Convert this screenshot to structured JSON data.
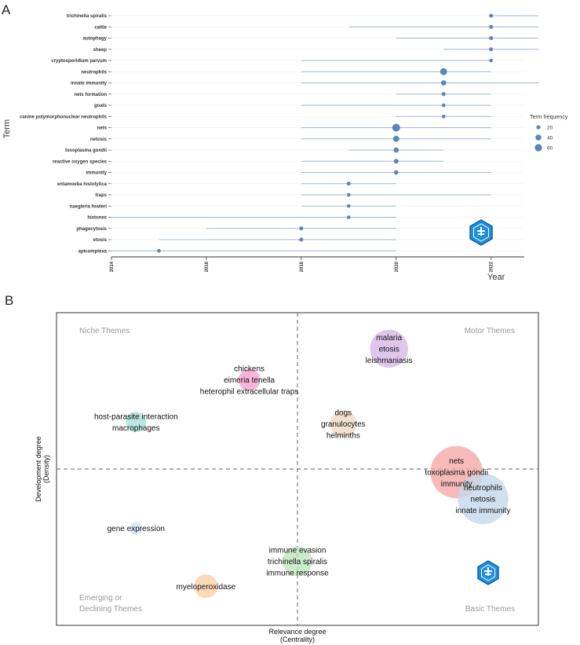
{
  "chart_data": [
    {
      "panel": "A",
      "type": "scatter",
      "subtype": "trend-topics",
      "xlabel": "Year",
      "ylabel": "Term",
      "xlim": [
        2014,
        2022.7
      ],
      "x_ticks": [
        "2014",
        "2016",
        "2018",
        "2020",
        "2022"
      ],
      "legend": {
        "title": "Term frequency",
        "entries": [
          {
            "label": "20",
            "value": 20
          },
          {
            "label": "40",
            "value": 40
          },
          {
            "label": "60",
            "value": 60
          }
        ],
        "position": "right"
      },
      "terms": [
        {
          "term": "trichinella spiralis",
          "start": 2022,
          "median": 2022,
          "end": 2023,
          "freq": 18
        },
        {
          "term": "cattle",
          "start": 2019,
          "median": 2022,
          "end": 2023,
          "freq": 18
        },
        {
          "term": "autophagy",
          "start": 2020,
          "median": 2022,
          "end": 2023,
          "freq": 18
        },
        {
          "term": "sheep",
          "start": 2021,
          "median": 2022,
          "end": 2023,
          "freq": 18
        },
        {
          "term": "cryptosporidium parvum",
          "start": 2018,
          "median": 2022,
          "end": 2022,
          "freq": 15
        },
        {
          "term": "neutrophils",
          "start": 2018,
          "median": 2021,
          "end": 2022,
          "freq": 55
        },
        {
          "term": "innate immunity",
          "start": 2018,
          "median": 2021,
          "end": 2023,
          "freq": 30
        },
        {
          "term": "nets formation",
          "start": 2020,
          "median": 2021,
          "end": 2022,
          "freq": 18
        },
        {
          "term": "goats",
          "start": 2018,
          "median": 2021,
          "end": 2022,
          "freq": 15
        },
        {
          "term": "canine polymorphonuclear neutrophils",
          "start": 2020,
          "median": 2021,
          "end": 2022,
          "freq": 15
        },
        {
          "term": "nets",
          "start": 2018,
          "median": 2020,
          "end": 2022,
          "freq": 70
        },
        {
          "term": "netosis",
          "start": 2018,
          "median": 2020,
          "end": 2022,
          "freq": 42
        },
        {
          "term": "toxoplasma gondii",
          "start": 2019,
          "median": 2020,
          "end": 2021,
          "freq": 30
        },
        {
          "term": "reactive oxygen species",
          "start": 2018,
          "median": 2020,
          "end": 2021,
          "freq": 25
        },
        {
          "term": "immunity",
          "start": 2018,
          "median": 2020,
          "end": 2022,
          "freq": 22
        },
        {
          "term": "entamoeba histolytica",
          "start": 2018,
          "median": 2019,
          "end": 2020,
          "freq": 18
        },
        {
          "term": "traps",
          "start": 2018,
          "median": 2019,
          "end": 2022,
          "freq": 15
        },
        {
          "term": "naegleria fowleri",
          "start": 2018,
          "median": 2019,
          "end": 2020,
          "freq": 15
        },
        {
          "term": "histones",
          "start": 2014,
          "median": 2019,
          "end": 2020,
          "freq": 15
        },
        {
          "term": "phagocytosis",
          "start": 2016,
          "median": 2018,
          "end": 2020,
          "freq": 18
        },
        {
          "term": "etosis",
          "start": 2015,
          "median": 2018,
          "end": 2020,
          "freq": 18
        },
        {
          "term": "apicomplexa",
          "start": 2014,
          "median": 2015,
          "end": 2020,
          "freq": 15
        }
      ]
    },
    {
      "panel": "B",
      "type": "scatter",
      "subtype": "thematic-map",
      "xlabel": "Relevance degree\n(Centrality)",
      "ylabel": "Development degree\n(Density)",
      "quadrants": {
        "top_left": "Niche Themes",
        "top_right": "Motor Themes",
        "bottom_left": [
          "Emerging or",
          "Declining Themes"
        ],
        "bottom_right": "Basic Themes"
      },
      "centrality_range": [
        0,
        1
      ],
      "density_range": [
        0,
        1
      ],
      "clusters": [
        {
          "words": [
            "malaria",
            "etosis",
            "leishmaniasis"
          ],
          "centrality": 0.69,
          "density": 0.885,
          "size": 18,
          "color": "#d7b8e6"
        },
        {
          "words": [
            "chickens",
            "eimeria tenella",
            "heterophil extracellular traps"
          ],
          "centrality": 0.4,
          "density": 0.785,
          "size": 6,
          "color": "#f5a3cf"
        },
        {
          "words": [
            "host-parasite interaction",
            "macrophages"
          ],
          "centrality": 0.165,
          "density": 0.65,
          "size": 5,
          "color": "#a8e0d8"
        },
        {
          "words": [
            "dogs",
            "granulocytes",
            "helminths"
          ],
          "centrality": 0.595,
          "density": 0.645,
          "size": 9,
          "color": "#ecd9c6"
        },
        {
          "words": [
            "nets",
            "toxoplasma gondii",
            "immunity"
          ],
          "centrality": 0.83,
          "density": 0.49,
          "size": 34,
          "color": "#f4a9a8"
        },
        {
          "words": [
            "neutrophils",
            "netosis",
            "innate immunity"
          ],
          "centrality": 0.885,
          "density": 0.405,
          "size": 32,
          "color": "#c6d8ea"
        },
        {
          "words": [
            "gene expression"
          ],
          "centrality": 0.165,
          "density": 0.31,
          "size": 2,
          "color": "#cfe3f5"
        },
        {
          "words": [
            "immune evasion",
            "trichinella spiralis",
            "immune response"
          ],
          "centrality": 0.5,
          "density": 0.205,
          "size": 11,
          "color": "#bfe5bf"
        },
        {
          "words": [
            "myeloperoxidase"
          ],
          "centrality": 0.31,
          "density": 0.125,
          "size": 7,
          "color": "#fbd1a6"
        }
      ]
    }
  ],
  "labels": {
    "panel_a": "A",
    "panel_b": "B"
  },
  "colors": {
    "accent": "#5b86b8",
    "segment": "#a3b5d3",
    "logo": "#1f8fd8"
  }
}
